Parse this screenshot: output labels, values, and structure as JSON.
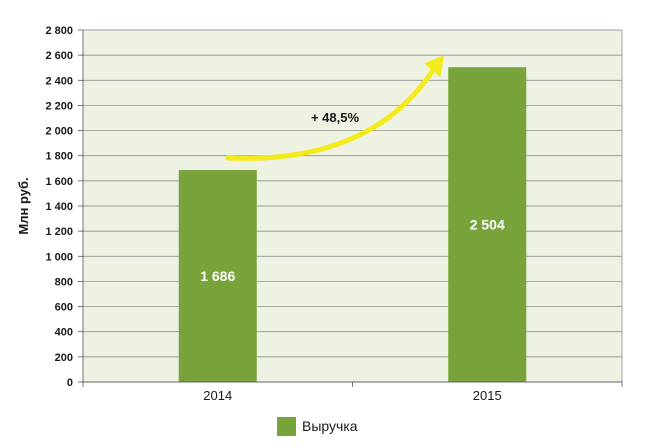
{
  "chart_data": {
    "type": "bar",
    "categories": [
      "2014",
      "2015"
    ],
    "series": [
      {
        "name": "Выручка",
        "values": [
          1686,
          2504
        ],
        "data_labels": [
          "1 686",
          "2 504"
        ]
      }
    ],
    "ylabel": "Млн руб.",
    "ylim": [
      0,
      2800
    ],
    "yticks": [
      0,
      200,
      400,
      600,
      800,
      1000,
      1200,
      1400,
      1600,
      1800,
      2000,
      2200,
      2400,
      2600,
      2800
    ],
    "ytick_labels": [
      "0",
      "200",
      "400",
      "600",
      "800",
      "1 000",
      "1 200",
      "1 400",
      "1 600",
      "1 800",
      "2 000",
      "2 200",
      "2 400",
      "2 600",
      "2 800"
    ],
    "grid": true,
    "annotation": {
      "text": "+ 48,5%",
      "arrow_color": "#f2ea1c"
    },
    "legend_position": "bottom",
    "colors": {
      "bar": "#78a33a",
      "plot_bg": "#eef2e2",
      "grid": "#7f7f7f"
    }
  }
}
